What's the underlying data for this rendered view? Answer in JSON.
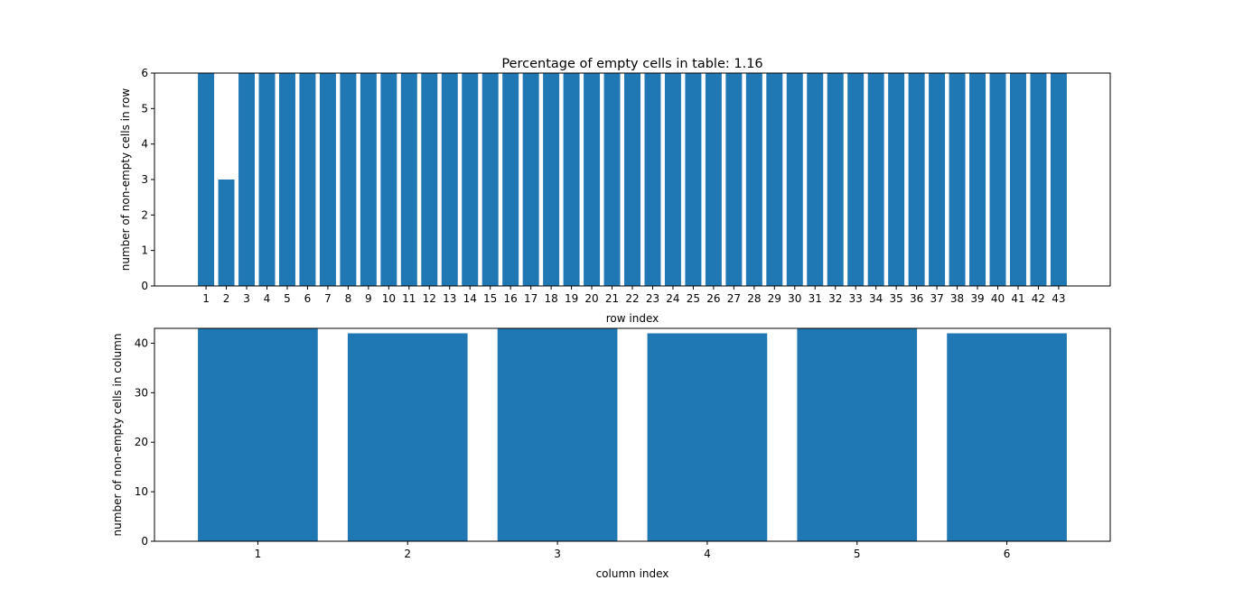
{
  "chart_data": [
    {
      "type": "bar",
      "title": "Percentage of empty cells in table: 1.16",
      "xlabel": "row index",
      "ylabel": "number of non-empty cells in row",
      "categories": [
        1,
        2,
        3,
        4,
        5,
        6,
        7,
        8,
        9,
        10,
        11,
        12,
        13,
        14,
        15,
        16,
        17,
        18,
        19,
        20,
        21,
        22,
        23,
        24,
        25,
        26,
        27,
        28,
        29,
        30,
        31,
        32,
        33,
        34,
        35,
        36,
        37,
        38,
        39,
        40,
        41,
        42,
        43
      ],
      "values": [
        6,
        3,
        6,
        6,
        6,
        6,
        6,
        6,
        6,
        6,
        6,
        6,
        6,
        6,
        6,
        6,
        6,
        6,
        6,
        6,
        6,
        6,
        6,
        6,
        6,
        6,
        6,
        6,
        6,
        6,
        6,
        6,
        6,
        6,
        6,
        6,
        6,
        6,
        6,
        6,
        6,
        6,
        6
      ],
      "yticks": [
        0,
        1,
        2,
        3,
        4,
        5,
        6
      ],
      "ylim": [
        0,
        6
      ],
      "bar_color": "#1f77b4",
      "grid": false
    },
    {
      "type": "bar",
      "title": "",
      "xlabel": "column index",
      "ylabel": "number of non-empty cells in column",
      "categories": [
        1,
        2,
        3,
        4,
        5,
        6
      ],
      "values": [
        43,
        42,
        43,
        42,
        43,
        42
      ],
      "yticks": [
        0,
        10,
        20,
        30,
        40
      ],
      "ylim": [
        0,
        43
      ],
      "bar_color": "#1f77b4",
      "grid": false
    }
  ]
}
